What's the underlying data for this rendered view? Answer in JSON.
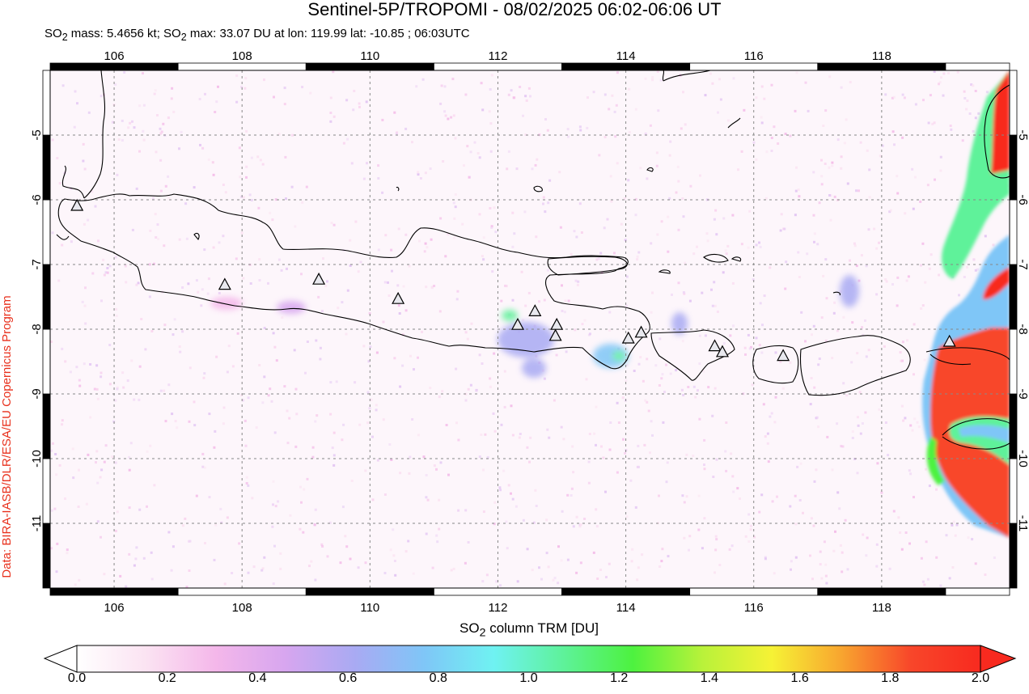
{
  "title": "Sentinel-5P/TROPOMI - 08/02/2025 06:02-06:06 UT",
  "subtitle": {
    "p1": "SO",
    "sub1": "2",
    "p2": " mass: 5.4656 kt; SO",
    "sub2": "2",
    "p3": " max: 33.07 DU at lon: 119.99 lat: -10.85 ; 06:03UTC"
  },
  "credit": "Data: BIRA-IASB/DLR/ESA/EU Copernicus Program",
  "map": {
    "lon_range": [
      105,
      120
    ],
    "lat_range": [
      -12,
      -4
    ],
    "lon_ticks": [
      "106",
      "108",
      "110",
      "112",
      "114",
      "116",
      "118"
    ],
    "lat_ticks": [
      "-5",
      "-6",
      "-7",
      "-8",
      "-9",
      "-10",
      "-11"
    ],
    "grid": true,
    "volcano_icon": "triangle-icon",
    "volcanoes": [
      [
        105.42,
        -6.1
      ],
      [
        107.73,
        -7.32
      ],
      [
        109.2,
        -7.24
      ],
      [
        110.44,
        -7.54
      ],
      [
        112.31,
        -7.94
      ],
      [
        112.58,
        -7.73
      ],
      [
        112.92,
        -7.94
      ],
      [
        112.9,
        -8.11
      ],
      [
        114.04,
        -8.15
      ],
      [
        114.24,
        -8.06
      ],
      [
        115.39,
        -8.27
      ],
      [
        115.51,
        -8.36
      ],
      [
        116.46,
        -8.42
      ],
      [
        119.06,
        -8.2
      ]
    ]
  },
  "colorbar": {
    "label": "SO",
    "label_sub": "2",
    "label_rest": " column TRM [DU]",
    "ticks": [
      "0.0",
      "0.2",
      "0.4",
      "0.6",
      "0.8",
      "1.0",
      "1.2",
      "1.4",
      "1.6",
      "1.8",
      "2.0"
    ],
    "range": [
      0,
      2
    ],
    "colors": [
      "#ffffff",
      "#fbe3f2",
      "#f4b7ea",
      "#d7a6ef",
      "#a9aaf3",
      "#7fc6f7",
      "#6ff2f2",
      "#5ef29a",
      "#4df23f",
      "#b9f23a",
      "#f6f235",
      "#f8a52f",
      "#f8462a",
      "#f82a1f"
    ]
  }
}
